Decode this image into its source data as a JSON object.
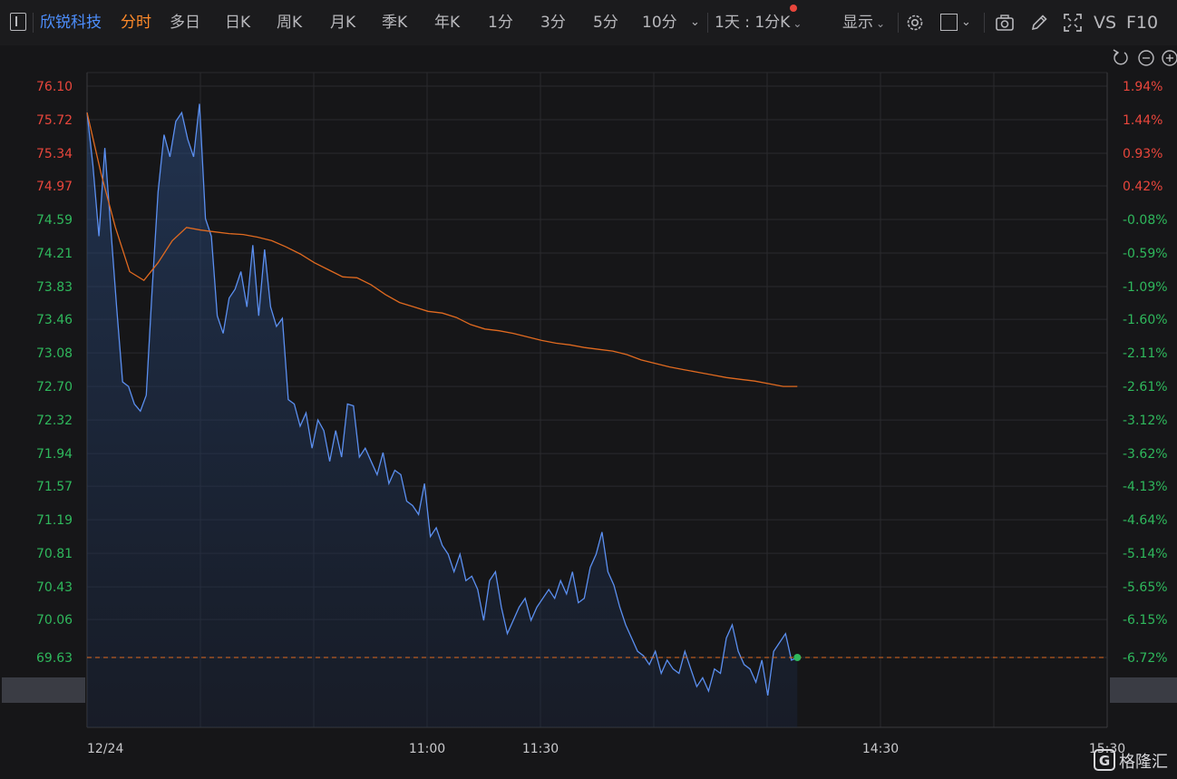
{
  "toolbar": {
    "stock_name": "欣锐科技",
    "tabs": [
      "分时",
      "多日",
      "日K",
      "周K",
      "月K",
      "季K",
      "年K",
      "1分",
      "3分",
      "5分",
      "10分"
    ],
    "active_tab": "分时",
    "period": "1天 : 1分K",
    "display": "显示",
    "vs": "VS",
    "f10": "F10"
  },
  "watermark": "格隆汇",
  "colors": {
    "price_line": "#5b8ff0",
    "avg_line": "#e06a20",
    "up": "#e8463c",
    "down": "#2fb85c",
    "current_dot": "#2fb85c"
  },
  "chart_data": {
    "type": "line",
    "title": "",
    "xlabel": "",
    "ylabel": "",
    "ylim": [
      69.25,
      76.1
    ],
    "y_ticks": [
      "76.10",
      "75.72",
      "75.34",
      "74.97",
      "74.59",
      "74.21",
      "73.83",
      "73.46",
      "73.08",
      "72.70",
      "72.32",
      "71.94",
      "71.57",
      "71.19",
      "70.81",
      "70.43",
      "70.06",
      "69.63"
    ],
    "pct_ticks": [
      "1.94%",
      "1.44%",
      "0.93%",
      "0.42%",
      "-0.08%",
      "-0.59%",
      "-1.09%",
      "-1.60%",
      "-2.11%",
      "-2.61%",
      "-3.12%",
      "-3.62%",
      "-4.13%",
      "-4.64%",
      "-5.14%",
      "-5.65%",
      "-6.15%",
      "-6.72%"
    ],
    "x_labels": [
      {
        "label": "12/24",
        "minute": 0
      },
      {
        "label": "11:00",
        "minute": 90
      },
      {
        "label": "11:30",
        "minute": 120
      },
      {
        "label": "14:30",
        "minute": 210
      },
      {
        "label": "15:30",
        "minute": 270
      }
    ],
    "x_range_minutes": [
      0,
      270
    ],
    "current_price": "69.63",
    "current_pct": "-6.72%",
    "series": [
      {
        "name": "price",
        "values": [
          75.8,
          75.2,
          74.4,
          75.4,
          74.5,
          73.6,
          72.75,
          72.7,
          72.5,
          72.42,
          72.6,
          73.8,
          74.9,
          75.55,
          75.3,
          75.7,
          75.8,
          75.5,
          75.3,
          75.9,
          74.6,
          74.4,
          73.5,
          73.3,
          73.7,
          73.8,
          74.0,
          73.6,
          74.3,
          73.5,
          74.25,
          73.6,
          73.38,
          73.47,
          72.55,
          72.5,
          72.25,
          72.4,
          72.0,
          72.32,
          72.2,
          71.85,
          72.2,
          71.9,
          72.5,
          72.48,
          71.9,
          72.0,
          71.85,
          71.7,
          71.95,
          71.6,
          71.75,
          71.7,
          71.4,
          71.35,
          71.25,
          71.6,
          71.0,
          71.1,
          70.9,
          70.8,
          70.6,
          70.8,
          70.5,
          70.55,
          70.4,
          70.05,
          70.5,
          70.6,
          70.2,
          69.9,
          70.05,
          70.2,
          70.3,
          70.05,
          70.2,
          70.3,
          70.4,
          70.3,
          70.5,
          70.35,
          70.6,
          70.25,
          70.3,
          70.65,
          70.8,
          71.05,
          70.6,
          70.45,
          70.2,
          70.0,
          69.85,
          69.7,
          69.65,
          69.55,
          69.7,
          69.45,
          69.6,
          69.5,
          69.45,
          69.7,
          69.5,
          69.3,
          69.4,
          69.25,
          69.5,
          69.45,
          69.85,
          70.0,
          69.7,
          69.55,
          69.5,
          69.35,
          69.6,
          69.2,
          69.7,
          69.8,
          69.9,
          69.6,
          69.63
        ]
      },
      {
        "name": "average",
        "values": [
          75.8,
          75.1,
          74.5,
          74.0,
          73.9,
          74.1,
          74.35,
          74.5,
          74.47,
          74.45,
          74.43,
          74.42,
          74.39,
          74.35,
          74.28,
          74.2,
          74.1,
          74.02,
          73.94,
          73.93,
          73.85,
          73.74,
          73.65,
          73.6,
          73.55,
          73.53,
          73.48,
          73.4,
          73.35,
          73.33,
          73.3,
          73.26,
          73.22,
          73.19,
          73.17,
          73.14,
          73.12,
          73.1,
          73.06,
          73.0,
          72.96,
          72.92,
          72.89,
          72.86,
          72.83,
          72.8,
          72.78,
          72.76,
          72.73,
          72.7,
          72.7
        ]
      }
    ]
  }
}
